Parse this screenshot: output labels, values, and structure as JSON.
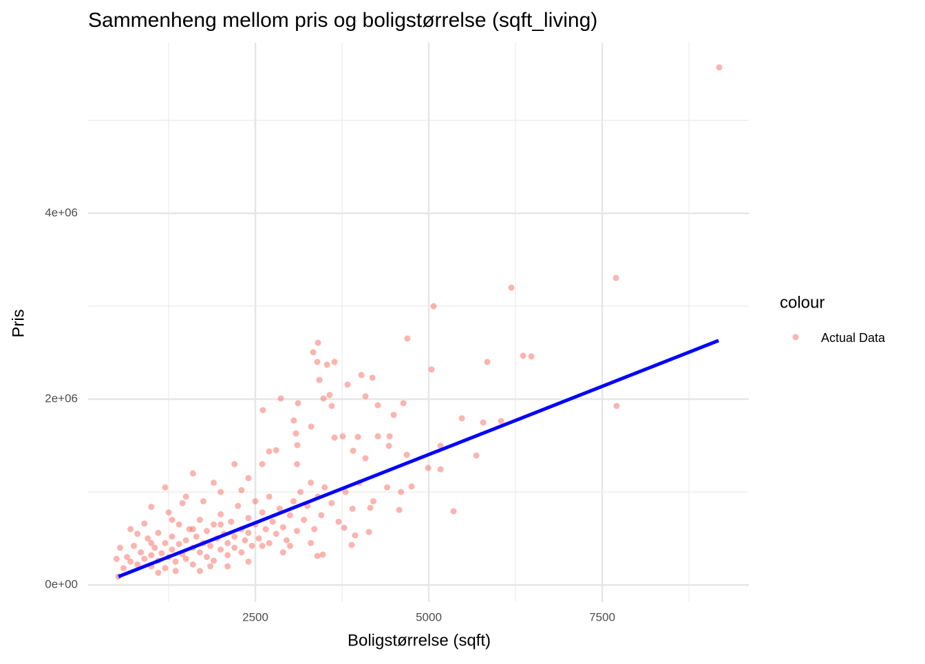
{
  "chart_data": {
    "type": "scatter",
    "title": "Sammenheng mellom pris og boligstørrelse (sqft_living)",
    "x_label": "Boligstørrelse (sqft)",
    "y_label": "Pris",
    "legend_title": "colour",
    "xlim": [
      89,
      9613
    ],
    "ylim": [
      -185000,
      5837000
    ],
    "xticks": [
      2500,
      5000,
      7500
    ],
    "yticks": [
      {
        "value": 0,
        "label": "0e+00"
      },
      {
        "value": 2000000,
        "label": "2e+06"
      },
      {
        "value": 4000000,
        "label": "4e+06"
      }
    ],
    "x_minor_ticks": [
      1250,
      3750,
      6250,
      8750
    ],
    "y_minor_ticks": [
      1000000,
      3000000,
      5000000
    ],
    "grid": true,
    "series": [
      {
        "name": "Actual Data",
        "color": "#f8766d",
        "x": [
          9187,
          7698,
          6190,
          5069,
          7708,
          6359,
          6478,
          5843,
          5040,
          4692,
          3403,
          3333,
          3393,
          3532,
          3641,
          3423,
          4028,
          4187,
          2867,
          3115,
          3571,
          3482,
          3601,
          3829,
          4087,
          4266,
          4633,
          4494,
          2609,
          3055,
          3304,
          5476,
          5784,
          6042,
          5685,
          5357,
          5169,
          4990,
          5169,
          4683,
          4752,
          4573,
          4425,
          4266,
          4435,
          3978,
          3641,
          3760,
          3909,
          4087,
          3085,
          2698,
          3105,
          4157,
          3938,
          3889,
          3393,
          3472,
          4137,
          3780,
          526,
          600,
          650,
          700,
          750,
          800,
          850,
          900,
          950,
          1000,
          1000,
          1050,
          1100,
          1100,
          1150,
          1200,
          1200,
          1250,
          1300,
          1300,
          1350,
          1400,
          1400,
          1450,
          1500,
          1500,
          1550,
          1600,
          1600,
          1650,
          1700,
          1700,
          1750,
          1800,
          1800,
          1850,
          1900,
          1900,
          1950,
          2000,
          2000,
          2050,
          2100,
          2100,
          2150,
          2200,
          2200,
          2250,
          2300,
          2300,
          2350,
          2400,
          2400,
          2450,
          2500,
          2500,
          2550,
          2600,
          2650,
          2700,
          2700,
          2750,
          2800,
          2850,
          2900,
          2950,
          3000,
          3050,
          3100,
          3150,
          3200,
          3250,
          3300,
          3350,
          3400,
          3450,
          3500,
          3600,
          3700,
          3800,
          3900,
          4000,
          4200,
          4400,
          4600,
          1000,
          1200,
          1600,
          1900,
          2200,
          2600,
          2800,
          3100,
          1500,
          2000,
          2400,
          1300,
          800,
          1700,
          1100,
          2400,
          2900,
          3300,
          700,
          900,
          1250,
          1450,
          1750,
          2300,
          1000,
          1600,
          2000,
          2600,
          3000,
          500,
          550,
          1350,
          1850,
          2100
        ],
        "values": [
          5570000,
          3304000,
          3200000,
          3000000,
          1926000,
          2467000,
          2459000,
          2400000,
          2319000,
          2652000,
          2607000,
          2504000,
          2400000,
          2370000,
          2400000,
          2207000,
          2259000,
          2230000,
          2007000,
          1956000,
          2044000,
          2007000,
          1926000,
          2156000,
          2030000,
          1933000,
          1956000,
          1830000,
          1881000,
          1770000,
          1704000,
          1793000,
          1748000,
          1763000,
          1393000,
          793000,
          1496000,
          1259000,
          1244000,
          1400000,
          1059000,
          807000,
          1496000,
          1600000,
          1600000,
          1593000,
          1585000,
          1600000,
          1444000,
          1363000,
          1630000,
          1437000,
          1504000,
          830000,
          533000,
          430000,
          311000,
          326000,
          570000,
          615000,
          89000,
          180000,
          300000,
          250000,
          420000,
          220000,
          350000,
          280000,
          500000,
          320000,
          200000,
          400000,
          260000,
          560000,
          340000,
          450000,
          180000,
          300000,
          520000,
          380000,
          250000,
          440000,
          650000,
          330000,
          480000,
          280000,
          600000,
          400000,
          220000,
          520000,
          350000,
          700000,
          450000,
          300000,
          580000,
          420000,
          650000,
          260000,
          500000,
          380000,
          760000,
          550000,
          320000,
          450000,
          680000,
          520000,
          400000,
          850000,
          600000,
          350000,
          480000,
          720000,
          560000,
          420000,
          650000,
          900000,
          500000,
          780000,
          600000,
          450000,
          950000,
          680000,
          550000,
          820000,
          620000,
          480000,
          750000,
          900000,
          580000,
          1000000,
          700000,
          850000,
          1100000,
          600000,
          950000,
          750000,
          1050000,
          880000,
          680000,
          1000000,
          820000,
          1100000,
          900000,
          1050000,
          1000000,
          840000,
          1050000,
          1200000,
          1100000,
          1300000,
          1300000,
          1450000,
          1300000,
          950000,
          1000000,
          1150000,
          700000,
          550000,
          150000,
          130000,
          250000,
          350000,
          450000,
          600000,
          660000,
          780000,
          880000,
          900000,
          1020000,
          450000,
          600000,
          650000,
          420000,
          420000,
          280000,
          400000,
          150000,
          200000,
          200000
        ]
      }
    ],
    "fit_line": {
      "color": "#0000ff",
      "x": [
        526,
        9177
      ],
      "values": [
        89000,
        2630000
      ]
    }
  }
}
